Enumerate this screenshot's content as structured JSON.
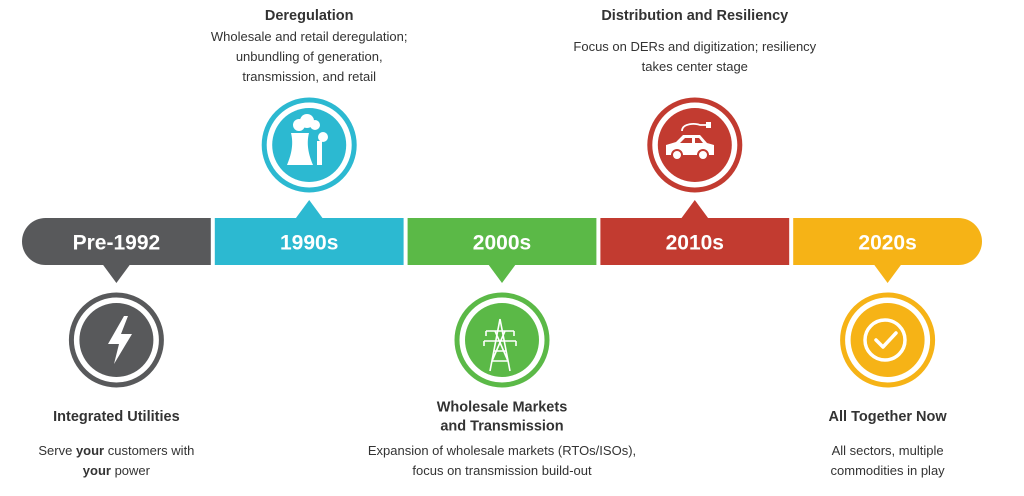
{
  "milestones": [
    {
      "label": "Pre-1992",
      "color": "#58595b",
      "title": [
        "Integrated Utilities"
      ],
      "description": [
        [
          {
            "text": "Serve ",
            "bold": false
          },
          {
            "text": "your",
            "bold": true
          },
          {
            "text": " customers with",
            "bold": false
          }
        ],
        [
          {
            "text": "your",
            "bold": true
          },
          {
            "text": " power",
            "bold": false
          }
        ]
      ]
    },
    {
      "label": "1990s",
      "color": "#2cb9d1",
      "title": [
        "Deregulation"
      ],
      "description": [
        "Wholesale and retail deregulation;",
        "unbundling of generation,",
        "transmission, and retail"
      ]
    },
    {
      "label": "2000s",
      "color": "#5bb947",
      "title": [
        "Wholesale Markets",
        "and Transmission"
      ],
      "description": [
        "Expansion of wholesale markets (RTOs/ISOs),",
        "focus on transmission build-out"
      ]
    },
    {
      "label": "2010s",
      "color": "#c23b30",
      "title": [
        "Distribution and Resiliency"
      ],
      "description": [
        "Focus on DERs and digitization; resiliency",
        "takes center stage"
      ]
    },
    {
      "label": "2020s",
      "color": "#f6b316",
      "title": [
        "All Together Now"
      ],
      "description": [
        "All sectors, multiple",
        "commodities in play"
      ]
    }
  ]
}
